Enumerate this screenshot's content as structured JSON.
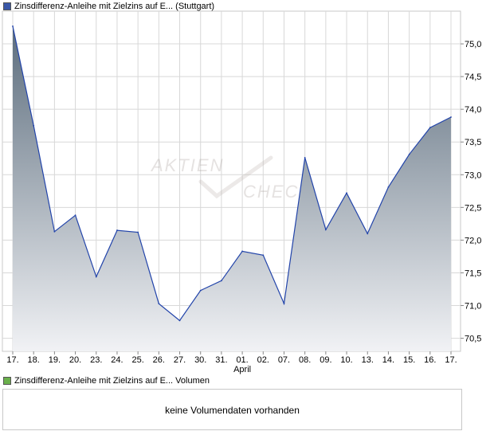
{
  "price_legend": {
    "label": "Zinsdifferenz-Anleihe mit Zielzins auf E...  (Stuttgart)",
    "color": "#3a58a8"
  },
  "volume_legend": {
    "label": "Zinsdifferenz-Anleihe mit Zielzins auf E...  Volumen",
    "color": "#6ab04c"
  },
  "watermark": {
    "line1": "AKTIEN",
    "line2": "CHECK"
  },
  "volume_panel": {
    "message": "keine Volumendaten vorhanden"
  },
  "chart_data": {
    "type": "area",
    "categories": [
      "17.",
      "18.",
      "19.",
      "20.",
      "23.",
      "24.",
      "25.",
      "26.",
      "27.",
      "30.",
      "31.",
      "01.",
      "02.",
      "07.",
      "08.",
      "09.",
      "10.",
      "13.",
      "14.",
      "15.",
      "16.",
      "17."
    ],
    "values": [
      75.27,
      73.75,
      72.13,
      72.38,
      71.44,
      72.15,
      72.12,
      71.03,
      70.77,
      71.23,
      71.38,
      71.83,
      71.77,
      71.03,
      73.26,
      72.16,
      72.72,
      72.1,
      72.81,
      73.31,
      73.72,
      73.88
    ],
    "month_label": {
      "text": "April",
      "index": 11
    },
    "yticks": [
      70.5,
      71.0,
      71.5,
      72.0,
      72.5,
      73.0,
      73.5,
      74.0,
      74.5,
      75.0
    ],
    "ytick_labels": [
      "70,5",
      "71,0",
      "71,5",
      "72,0",
      "72,5",
      "73,0",
      "73,5",
      "74,0",
      "74,5",
      "75,0"
    ],
    "ylim": [
      70.3,
      75.5
    ],
    "grid": true,
    "colors": {
      "line": "#2244aa",
      "fill_top": "#5c6d7d",
      "fill_bottom": "#f1f2f5",
      "grid": "#d8d8d8"
    }
  }
}
